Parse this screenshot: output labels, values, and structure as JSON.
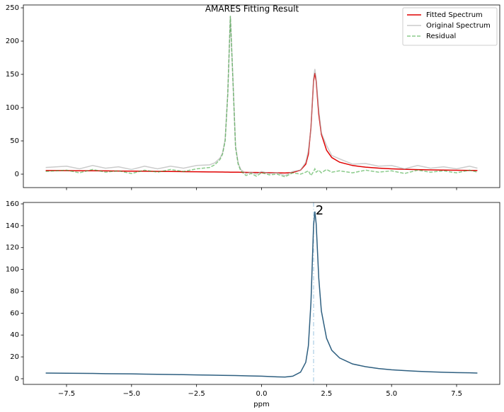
{
  "chart_data": [
    {
      "type": "line",
      "title": "AMARES Fitting Result",
      "legend": "upper right",
      "x": [
        -8.3,
        -7.5,
        -7,
        -6.5,
        -6,
        -5.5,
        -5,
        -4.5,
        -4,
        -3.5,
        -3,
        -2.5,
        -2,
        -1.8,
        -1.6,
        -1.5,
        -1.4,
        -1.3,
        -1.2,
        -1.1,
        -1.0,
        -0.9,
        -0.8,
        -0.6,
        -0.4,
        -0.2,
        0,
        0.3,
        0.6,
        0.9,
        1.2,
        1.5,
        1.7,
        1.8,
        1.9,
        2.0,
        2.05,
        2.1,
        2.2,
        2.3,
        2.5,
        2.7,
        3.0,
        3.5,
        4,
        4.5,
        5,
        5.5,
        6,
        6.5,
        7,
        7.5,
        8,
        8.3
      ],
      "series": [
        {
          "name": "Fitted Spectrum",
          "color": "#e00000",
          "style": "solid",
          "opacity": 1,
          "values": [
            5.5,
            5.3,
            5.1,
            5,
            4.9,
            4.7,
            4.6,
            4.4,
            4.2,
            4,
            3.8,
            3.6,
            3.4,
            3.3,
            3.2,
            3.2,
            3.1,
            3.1,
            3,
            3,
            2.9,
            2.9,
            2.8,
            2.7,
            2.6,
            2.5,
            2.4,
            2.2,
            2.0,
            1.8,
            2.5,
            6,
            15,
            30,
            70,
            140,
            152,
            140,
            90,
            60,
            36,
            25,
            18,
            13,
            10.5,
            9,
            8,
            7.3,
            6.8,
            6.4,
            6.1,
            5.8,
            5.6,
            5.5
          ]
        },
        {
          "name": "Original Spectrum",
          "color": "#a9a9a9",
          "style": "solid",
          "opacity": 0.6,
          "values": [
            10,
            12,
            8,
            13,
            9,
            11,
            7,
            12,
            8,
            12,
            9,
            13,
            14,
            17,
            24,
            32,
            52,
            120,
            237,
            142,
            42,
            17,
            7,
            1,
            3,
            0,
            4,
            1,
            2,
            -2,
            4,
            6,
            18,
            35,
            68,
            144,
            158,
            143,
            96,
            62,
            43,
            28,
            23,
            15,
            16,
            12,
            13,
            8,
            13,
            9,
            11,
            8,
            12,
            9
          ]
        },
        {
          "name": "Residual",
          "color": "#2ca02c",
          "style": "dashed",
          "opacity": 0.55,
          "values": [
            4,
            6,
            2,
            7,
            3,
            5,
            1,
            6,
            3,
            7,
            4,
            8,
            10,
            14,
            22,
            30,
            50,
            120,
            238,
            140,
            40,
            15,
            5,
            -2,
            1,
            -3,
            2,
            -1,
            0,
            -4,
            2,
            0,
            3,
            5,
            -2,
            4,
            8,
            3,
            6,
            2,
            7,
            3,
            5,
            2,
            6,
            3,
            5,
            1,
            6,
            3,
            5,
            2,
            6,
            3
          ]
        }
      ],
      "xlim": [
        -9.16,
        9.16
      ],
      "xticks": [
        -7.5,
        -5,
        -2.5,
        0,
        2.5,
        5,
        7.5
      ],
      "ylim": [
        -20.2,
        254.3
      ],
      "yticks": [
        0,
        50,
        100,
        150,
        200,
        250
      ]
    },
    {
      "type": "line",
      "xlabel": "ppm",
      "x": [
        -8.3,
        -7.5,
        -7,
        -6.5,
        -6,
        -5.5,
        -5,
        -4.5,
        -4,
        -3.5,
        -3,
        -2.5,
        -2,
        -1.5,
        -1,
        -0.5,
        0,
        0.3,
        0.6,
        0.9,
        1.2,
        1.5,
        1.7,
        1.8,
        1.9,
        2.0,
        2.05,
        2.1,
        2.2,
        2.3,
        2.5,
        2.7,
        3.0,
        3.5,
        4,
        4.5,
        5,
        5.5,
        6,
        6.5,
        7,
        7.5,
        8,
        8.3
      ],
      "series": [
        {
          "color": "#2e5f80",
          "style": "solid",
          "opacity": 1,
          "values": [
            5.2,
            5.0,
            4.9,
            4.8,
            4.6,
            4.5,
            4.4,
            4.2,
            4.0,
            3.9,
            3.7,
            3.5,
            3.3,
            3.1,
            2.9,
            2.6,
            2.3,
            2.0,
            1.7,
            1.5,
            2.3,
            6,
            15,
            30,
            70,
            140,
            153,
            142,
            92,
            62,
            37,
            26,
            19,
            13.5,
            11,
            9.3,
            8.2,
            7.4,
            6.8,
            6.3,
            5.9,
            5.6,
            5.4,
            5.2
          ]
        }
      ],
      "vlines": [
        2.0
      ],
      "vline_color": "#bcd7ea",
      "annotations": [
        {
          "text": "2",
          "x": 2.05,
          "y": 153,
          "color": "#1f77b4"
        }
      ],
      "xlim": [
        -9.16,
        9.16
      ],
      "xticks": [
        {
          "value": -7.5,
          "label": "−7.5"
        },
        {
          "value": -5,
          "label": "−5.0"
        },
        {
          "value": -2.5,
          "label": "−2.5"
        },
        {
          "value": 0,
          "label": "0.0"
        },
        {
          "value": 2.5,
          "label": "2.5"
        },
        {
          "value": 5,
          "label": "5.0"
        },
        {
          "value": 7.5,
          "label": "7.5"
        }
      ],
      "ylim": [
        -5.2,
        161.3
      ],
      "yticks": [
        0,
        20,
        40,
        60,
        80,
        100,
        120,
        140,
        160
      ]
    }
  ]
}
